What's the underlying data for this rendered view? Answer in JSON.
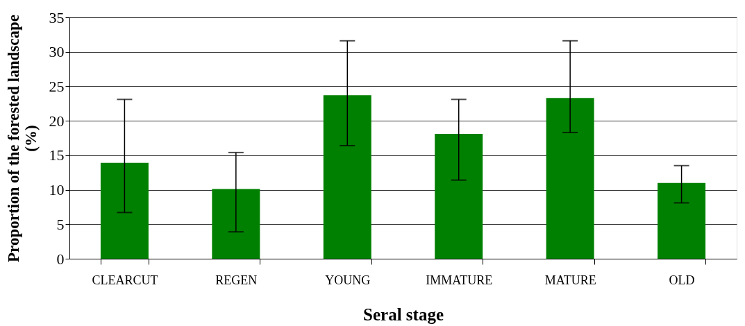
{
  "chart_data": {
    "type": "bar",
    "xlabel": "Seral stage",
    "ylabel": "Proportion of the forested landscape (%)",
    "categories": [
      "CLEARCUT",
      "REGEN",
      "YOUNG",
      "IMMATURE",
      "MATURE",
      "OLD"
    ],
    "values": [
      13.9,
      10.1,
      23.7,
      18.1,
      23.3,
      11.0
    ],
    "color": "#008000",
    "errors": [
      [
        6.7,
        23.1
      ],
      [
        3.9,
        15.4
      ],
      [
        16.4,
        31.6
      ],
      [
        11.4,
        23.1
      ],
      [
        18.3,
        31.6
      ],
      [
        8.1,
        13.5
      ]
    ],
    "ylim": [
      0,
      35
    ],
    "yticks": [
      0,
      5,
      10,
      15,
      20,
      25,
      30,
      35
    ],
    "grid": "y"
  }
}
